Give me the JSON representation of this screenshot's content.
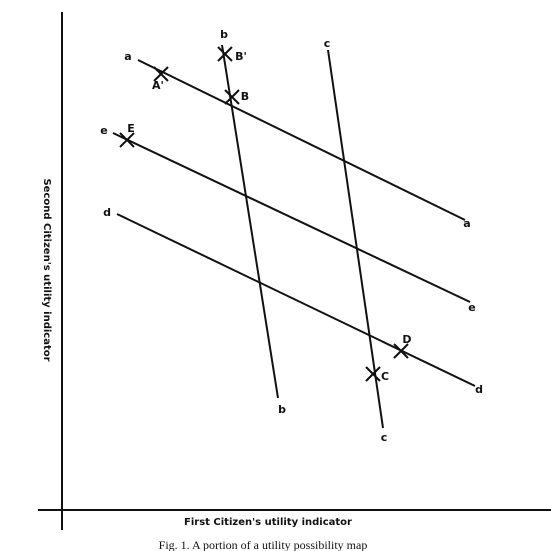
{
  "axes": {
    "y_label": "Second Citizen's utility indicator",
    "x_label": "First Citizen's utility indicator"
  },
  "lines": [
    {
      "label": "a"
    },
    {
      "label": "b"
    },
    {
      "label": "c"
    },
    {
      "label": "d"
    },
    {
      "label": "e"
    }
  ],
  "points": [
    {
      "label": "A'"
    },
    {
      "label": "B'"
    },
    {
      "label": "B"
    },
    {
      "label": "E"
    },
    {
      "label": "D"
    },
    {
      "label": "C"
    }
  ],
  "caption": "Fig. 1. A portion of a utility possibility map"
}
